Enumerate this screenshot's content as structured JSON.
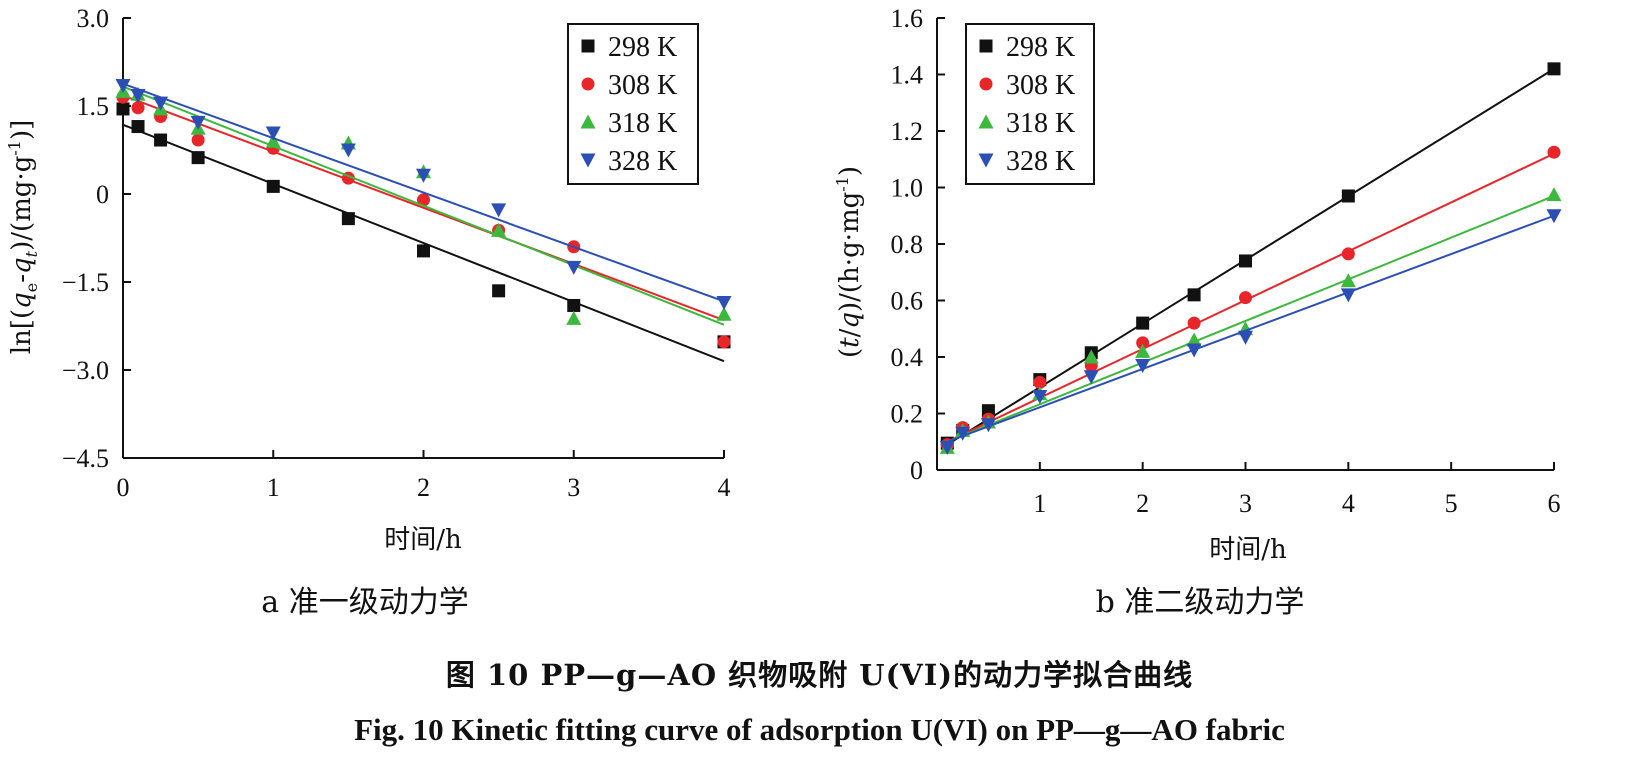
{
  "chart_data": [
    {
      "type": "scatter",
      "panel_label": "a 准一级动力学",
      "xlabel": "时间/h",
      "ylabel": "ln[(qe-qt)/(mg·g-1)]",
      "xlim": [
        0,
        4
      ],
      "ylim": [
        -4.5,
        3.0
      ],
      "x_ticks": [
        "0",
        "1",
        "2",
        "3",
        "4"
      ],
      "y_ticks": [
        "3.0",
        "1.5",
        "0",
        "−1.5",
        "−3.0",
        "−4.5"
      ],
      "legend_position": "top-right",
      "grid": false,
      "series": [
        {
          "name": "298 K",
          "color": "#111111",
          "marker": "square",
          "x": [
            0,
            0.1,
            0.25,
            0.5,
            1,
            1.5,
            2,
            2.5,
            3,
            4
          ],
          "y": [
            1.45,
            1.15,
            0.92,
            0.62,
            0.13,
            -0.42,
            -0.97,
            -1.65,
            -1.9,
            -2.52
          ],
          "fit": [
            [
              0,
              1.18
            ],
            [
              4,
              -2.85
            ]
          ]
        },
        {
          "name": "308 K",
          "color": "#e8262a",
          "marker": "circle",
          "x": [
            0,
            0.1,
            0.25,
            0.5,
            1,
            1.5,
            2,
            2.5,
            3,
            4
          ],
          "y": [
            1.65,
            1.47,
            1.32,
            0.92,
            0.78,
            0.27,
            -0.1,
            -0.62,
            -0.9,
            -2.52
          ],
          "fit": [
            [
              0,
              1.68
            ],
            [
              4,
              -2.15
            ]
          ]
        },
        {
          "name": "318 K",
          "color": "#3cb93c",
          "marker": "triangle-up",
          "x": [
            0,
            0.1,
            0.25,
            0.5,
            1,
            1.5,
            2,
            2.5,
            3,
            4
          ],
          "y": [
            1.75,
            1.7,
            1.45,
            1.12,
            0.9,
            0.87,
            0.38,
            -0.62,
            -2.12,
            -2.05
          ],
          "fit": [
            [
              0,
              1.83
            ],
            [
              4,
              -2.23
            ]
          ]
        },
        {
          "name": "328 K",
          "color": "#2b4fb5",
          "marker": "triangle-down",
          "x": [
            0,
            0.1,
            0.25,
            0.5,
            1,
            1.5,
            2,
            2.5,
            3,
            4
          ],
          "y": [
            1.85,
            1.68,
            1.55,
            1.22,
            1.04,
            0.75,
            0.32,
            -0.27,
            -1.25,
            -1.85
          ],
          "fit": [
            [
              0,
              1.88
            ],
            [
              4,
              -1.83
            ]
          ]
        }
      ]
    },
    {
      "type": "scatter",
      "panel_label": "b 准二级动力学",
      "xlabel": "时间/h",
      "ylabel": "(t/q)/(h·g·mg-1)",
      "xlim": [
        0,
        6
      ],
      "ylim": [
        0,
        1.6
      ],
      "x_ticks": [
        "1",
        "2",
        "3",
        "4",
        "5",
        "6"
      ],
      "y_ticks": [
        "0",
        "0.2",
        "0.4",
        "0.6",
        "0.8",
        "1.0",
        "1.2",
        "1.4",
        "1.6"
      ],
      "legend_position": "top-left",
      "grid": false,
      "series": [
        {
          "name": "298 K",
          "color": "#111111",
          "marker": "square",
          "x": [
            0.1,
            0.25,
            0.5,
            1,
            1.5,
            2,
            2.5,
            3,
            4,
            6
          ],
          "y": [
            0.095,
            0.14,
            0.21,
            0.32,
            0.415,
            0.52,
            0.62,
            0.74,
            0.97,
            1.42
          ],
          "fit": [
            [
              0.1,
              0.09
            ],
            [
              6,
              1.42
            ]
          ]
        },
        {
          "name": "308 K",
          "color": "#e8262a",
          "marker": "circle",
          "x": [
            0.1,
            0.25,
            0.5,
            1,
            1.5,
            2,
            2.5,
            3,
            4,
            6
          ],
          "y": [
            0.09,
            0.15,
            0.18,
            0.31,
            0.37,
            0.45,
            0.52,
            0.61,
            0.765,
            1.125
          ],
          "fit": [
            [
              0.1,
              0.1
            ],
            [
              6,
              1.12
            ]
          ]
        },
        {
          "name": "318 K",
          "color": "#3cb93c",
          "marker": "triangle-up",
          "x": [
            0.1,
            0.25,
            0.5,
            1,
            1.5,
            2,
            2.5,
            3,
            4,
            6
          ],
          "y": [
            0.08,
            0.14,
            0.17,
            0.27,
            0.4,
            0.42,
            0.46,
            0.5,
            0.67,
            0.975
          ],
          "fit": [
            [
              0.1,
              0.1
            ],
            [
              6,
              0.97
            ]
          ]
        },
        {
          "name": "328 K",
          "color": "#2b4fb5",
          "marker": "triangle-down",
          "x": [
            0.1,
            0.25,
            0.5,
            1,
            1.5,
            2,
            2.5,
            3,
            4,
            6
          ],
          "y": [
            0.08,
            0.13,
            0.16,
            0.26,
            0.33,
            0.37,
            0.425,
            0.47,
            0.62,
            0.9
          ],
          "fit": [
            [
              0.1,
              0.1
            ],
            [
              6,
              0.9
            ]
          ]
        }
      ]
    }
  ],
  "caption": {
    "cn": "图 10 PP—g—AO 织物吸附 U(VI)的动力学拟合曲线",
    "en": "Fig. 10 Kinetic fitting curve of adsorption U(VI) on PP—g—AO fabric"
  }
}
